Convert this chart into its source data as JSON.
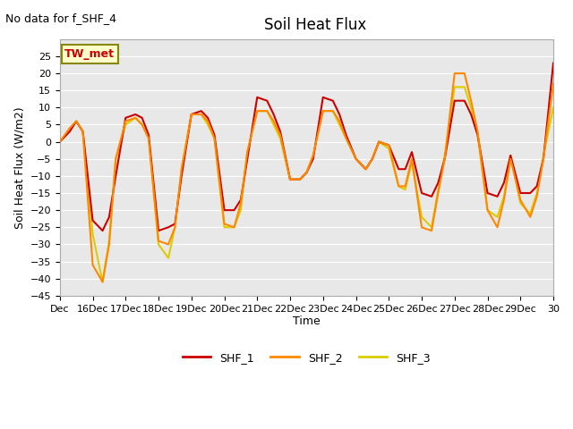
{
  "title": "Soil Heat Flux",
  "ylabel": "Soil Heat Flux (W/m2)",
  "xlabel": "Time",
  "no_data_text": "No data for f_SHF_4",
  "tw_met_label": "TW_met",
  "ylim": [
    -45,
    30
  ],
  "yticks": [
    -45,
    -40,
    -35,
    -30,
    -25,
    -20,
    -15,
    -10,
    -5,
    0,
    5,
    10,
    15,
    20,
    25
  ],
  "xtick_labels": [
    "Dec",
    "16Dec",
    "17Dec",
    "18Dec",
    "19Dec",
    "20Dec",
    "21Dec",
    "22Dec",
    "23Dec",
    "24Dec",
    "25Dec",
    "26Dec",
    "27Dec",
    "28Dec",
    "29Dec",
    "30"
  ],
  "legend_labels": [
    "SHF_1",
    "SHF_2",
    "SHF_3"
  ],
  "colors": {
    "SHF_1": "#cc0000",
    "SHF_2": "#ff8800",
    "SHF_3": "#ddcc00",
    "background": "#e8e8e8",
    "tw_met_bg": "#ffffcc",
    "tw_met_border": "#888800"
  },
  "shf1_x": [
    0,
    0.3,
    0.5,
    0.7,
    1.0,
    1.3,
    1.5,
    1.7,
    2.0,
    2.3,
    2.5,
    2.7,
    3.0,
    3.3,
    3.5,
    3.7,
    4.0,
    4.3,
    4.5,
    4.7,
    5.0,
    5.3,
    5.5,
    5.7,
    6.0,
    6.3,
    6.5,
    6.7,
    7.0,
    7.3,
    7.5,
    7.7,
    8.0,
    8.3,
    8.5,
    8.7,
    9.0,
    9.3,
    9.5,
    9.7,
    10.0,
    10.3,
    10.5,
    10.7,
    11.0,
    11.3,
    11.5,
    11.7,
    12.0,
    12.3,
    12.5,
    12.7,
    13.0,
    13.3,
    13.5,
    13.7,
    14.0,
    14.3,
    14.5,
    14.7,
    15.0
  ],
  "shf1_y": [
    0,
    3,
    6,
    3,
    -23,
    -26,
    -22,
    -10,
    7,
    8,
    7,
    2,
    -26,
    -25,
    -24,
    -10,
    8,
    9,
    7,
    2,
    -20,
    -20,
    -17,
    -5,
    13,
    12,
    8,
    3,
    -11,
    -11,
    -9,
    -5,
    13,
    12,
    8,
    2,
    -5,
    -8,
    -5,
    0,
    -1,
    -8,
    -8,
    -3,
    -15,
    -16,
    -12,
    -5,
    12,
    12,
    8,
    2,
    -15,
    -16,
    -12,
    -4,
    -15,
    -15,
    -13,
    -5,
    23
  ],
  "shf2_x": [
    0,
    0.3,
    0.5,
    0.7,
    1.0,
    1.3,
    1.5,
    1.7,
    2.0,
    2.3,
    2.5,
    2.7,
    3.0,
    3.3,
    3.5,
    3.7,
    4.0,
    4.3,
    4.5,
    4.7,
    5.0,
    5.3,
    5.5,
    5.7,
    6.0,
    6.3,
    6.5,
    6.7,
    7.0,
    7.3,
    7.5,
    7.7,
    8.0,
    8.3,
    8.5,
    8.7,
    9.0,
    9.3,
    9.5,
    9.7,
    10.0,
    10.3,
    10.5,
    10.7,
    11.0,
    11.3,
    11.5,
    11.7,
    12.0,
    12.3,
    12.5,
    12.7,
    13.0,
    13.3,
    13.5,
    13.7,
    14.0,
    14.3,
    14.5,
    14.7,
    15.0
  ],
  "shf2_y": [
    0,
    4,
    6,
    3,
    -36,
    -41,
    -30,
    -5,
    6,
    7,
    5,
    1,
    -29,
    -30,
    -25,
    -8,
    8,
    8,
    6,
    1,
    -24,
    -25,
    -18,
    -3,
    9,
    9,
    6,
    2,
    -11,
    -11,
    -9,
    -4,
    9,
    9,
    6,
    1,
    -5,
    -8,
    -5,
    0,
    -1,
    -13,
    -13,
    -5,
    -25,
    -26,
    -15,
    -5,
    20,
    20,
    12,
    3,
    -20,
    -25,
    -17,
    -5,
    -17,
    -22,
    -16,
    -5,
    17
  ],
  "shf3_x": [
    0,
    0.3,
    0.5,
    0.7,
    1.0,
    1.3,
    1.5,
    1.7,
    2.0,
    2.3,
    2.5,
    2.7,
    3.0,
    3.3,
    3.5,
    3.7,
    4.0,
    4.3,
    4.5,
    4.7,
    5.0,
    5.3,
    5.5,
    5.7,
    6.0,
    6.3,
    6.5,
    6.7,
    7.0,
    7.3,
    7.5,
    7.7,
    8.0,
    8.3,
    8.5,
    8.7,
    9.0,
    9.3,
    9.5,
    9.7,
    10.0,
    10.3,
    10.5,
    10.7,
    11.0,
    11.3,
    11.5,
    11.7,
    12.0,
    12.3,
    12.5,
    12.7,
    13.0,
    13.3,
    13.5,
    13.7,
    14.0,
    14.3,
    14.5,
    14.7,
    15.0
  ],
  "shf3_y": [
    0,
    3,
    6,
    3,
    -27,
    -41,
    -29,
    -5,
    5,
    7,
    5,
    1,
    -30,
    -34,
    -25,
    -8,
    8,
    8,
    5,
    1,
    -25,
    -25,
    -20,
    -3,
    9,
    9,
    5,
    1,
    -11,
    -11,
    -9,
    -4,
    9,
    9,
    5,
    1,
    -5,
    -8,
    -5,
    0,
    -2,
    -13,
    -14,
    -6,
    -22,
    -25,
    -14,
    -4,
    16,
    16,
    10,
    2,
    -20,
    -22,
    -16,
    -4,
    -18,
    -21,
    -15,
    -4,
    10
  ]
}
